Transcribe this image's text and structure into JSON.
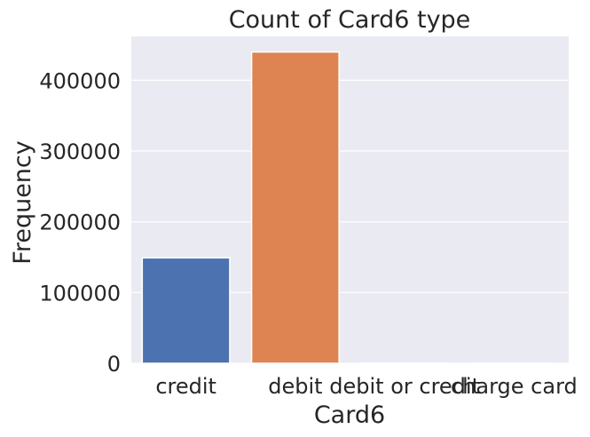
{
  "chart_data": {
    "type": "bar",
    "title": "Count of Card6 type",
    "xlabel": "Card6",
    "ylabel": "Frequency",
    "categories": [
      "credit",
      "debit",
      "debit or credit",
      "charge card"
    ],
    "values": [
      148986,
      439938,
      30,
      15
    ],
    "colors": [
      "#4c72b0",
      "#dd8452",
      "#55a868",
      "#c44e52"
    ],
    "ylim": [
      0,
      461935
    ],
    "yticks": [
      0,
      100000,
      200000,
      300000,
      400000
    ],
    "ytick_labels": [
      "0",
      "100000",
      "200000",
      "300000",
      "400000"
    ],
    "grid": true,
    "background": "#eaeaf2"
  }
}
